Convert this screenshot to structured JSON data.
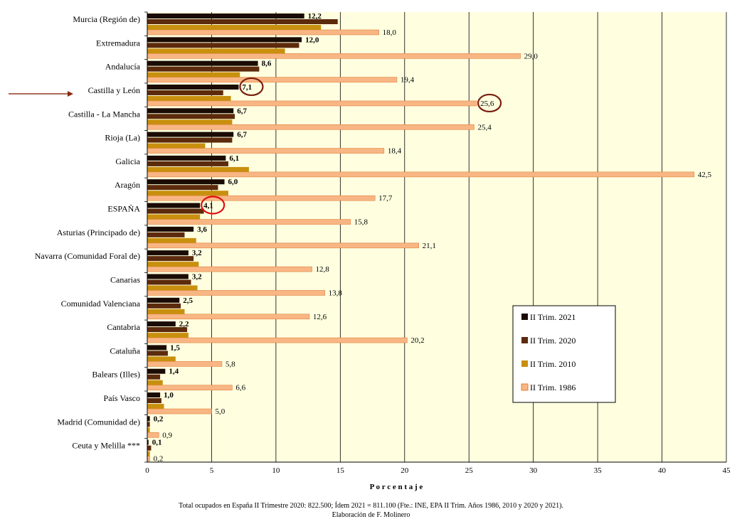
{
  "chart_data": {
    "type": "bar",
    "orientation": "horizontal",
    "xlabel": "P o r c e n t a j e",
    "xlim": [
      0,
      45
    ],
    "xticks": [
      0,
      5,
      10,
      15,
      20,
      25,
      30,
      35,
      40,
      45
    ],
    "grid": "vertical",
    "legend_position": "right",
    "plot_background": "#FFFFE0",
    "categories": [
      "Murcia (Región de)",
      "Extremadura",
      "Andalucía",
      "Castilla y León",
      "Castilla - La Mancha",
      "Rioja (La)",
      "Galicia",
      "Aragón",
      "ESPAÑA",
      "Asturias (Principado de)",
      "Navarra (Comunidad Foral de)",
      "Canarias",
      "Comunidad Valenciana",
      "Cantabria",
      "Cataluña",
      "Balears (Illes)",
      "País Vasco",
      "Madrid (Comunidad de)",
      "Ceuta y Melilla ***"
    ],
    "series": [
      {
        "name": "II Trim. 2021",
        "color": "#1a0c04",
        "labels": [
          "12,2",
          "12,0",
          "8,6",
          "7,1",
          "6,7",
          "6,7",
          "6,1",
          "6,0",
          "4,1",
          "3,6",
          "3,2",
          "3,2",
          "2,5",
          "2,2",
          "1,5",
          "1,4",
          "1,0",
          "0,2",
          "0,1"
        ],
        "values": [
          12.2,
          12.0,
          8.6,
          7.1,
          6.7,
          6.7,
          6.1,
          6.0,
          4.1,
          3.6,
          3.2,
          3.2,
          2.5,
          2.2,
          1.5,
          1.4,
          1.0,
          0.2,
          0.1
        ]
      },
      {
        "name": "II Trim. 2020",
        "color": "#5c2a0c",
        "values": [
          14.8,
          11.8,
          8.7,
          5.9,
          6.8,
          6.6,
          6.3,
          5.5,
          4.4,
          2.9,
          3.6,
          3.4,
          2.6,
          3.1,
          1.6,
          1.0,
          1.1,
          0.2,
          0.3
        ]
      },
      {
        "name": "II Trim. 2010",
        "color": "#c8900e",
        "values": [
          13.5,
          10.7,
          7.2,
          6.5,
          6.6,
          4.5,
          7.9,
          6.3,
          4.1,
          3.8,
          4.0,
          3.9,
          2.9,
          3.2,
          2.2,
          1.2,
          1.3,
          0.2,
          0.2
        ]
      },
      {
        "name": "II Trim. 1986",
        "color": "#f8b684",
        "labels": [
          "18,0",
          "29,0",
          "19,4",
          "25,6",
          "25,4",
          "18,4",
          "42,5",
          "17,7",
          "15,8",
          "21,1",
          "12,8",
          "13,8",
          "12,6",
          "20,2",
          "5,8",
          "6,6",
          "5,0",
          "0,9",
          "0,2"
        ],
        "values": [
          18.0,
          29.0,
          19.4,
          25.6,
          25.4,
          18.4,
          42.5,
          17.7,
          15.8,
          21.1,
          12.8,
          13.8,
          12.6,
          20.2,
          5.8,
          6.6,
          5.0,
          0.9,
          0.2
        ]
      }
    ],
    "annotations": {
      "arrow_category": "Castilla y León",
      "circled": [
        {
          "category": "Castilla y León",
          "series": "II Trim. 2021",
          "color": "#7a1f10"
        },
        {
          "category": "Castilla y León",
          "series": "II Trim. 1986",
          "color": "#7a1f10"
        },
        {
          "category": "ESPAÑA",
          "series": "II Trim. 2021",
          "color": "#e01010"
        }
      ]
    }
  },
  "footnotes": {
    "line1": "Total ocupados en España II Trimestre 2020: 822.500; Ídem 2021 = 811.100  (Fte.: INE, EPA II Trim. Años 1986, 2010 y 2020 y 2021).",
    "line2": "Elaboración de F. Molinero"
  }
}
